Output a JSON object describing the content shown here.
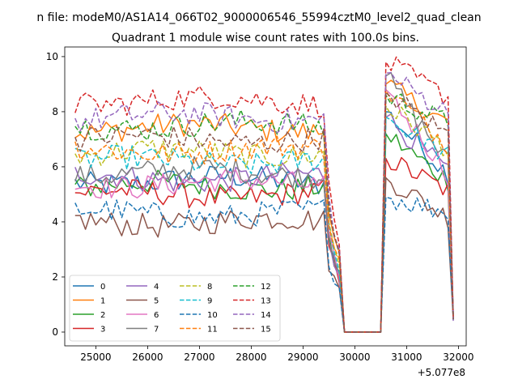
{
  "chart_data": {
    "type": "line",
    "suptitle": "n file: modeM0/AS1A14_066T02_9000006546_55994cztM0_level2_quad_clean",
    "title": "Quadrant 1 module wise count rates with 100.0s bins.",
    "xlabel": "",
    "ylabel": "",
    "x_offset_label": "+5.077e8",
    "xlim": [
      24400,
      32150
    ],
    "ylim": [
      -0.5,
      10.35
    ],
    "xticks": [
      25000,
      26000,
      27000,
      28000,
      29000,
      30000,
      31000,
      32000
    ],
    "yticks": [
      0,
      2,
      4,
      6,
      8,
      10
    ],
    "grid": false,
    "legend": {
      "location": "lower-left",
      "ncol": 4
    },
    "series": [
      {
        "name": "0",
        "color": "#1f77b4",
        "dash": "solid",
        "level": 5.5,
        "peak": 8.0
      },
      {
        "name": "1",
        "color": "#ff7f0e",
        "dash": "solid",
        "level": 7.4,
        "peak": 9.0
      },
      {
        "name": "2",
        "color": "#2ca02c",
        "dash": "solid",
        "level": 5.3,
        "peak": 7.2
      },
      {
        "name": "3",
        "color": "#d62728",
        "dash": "solid",
        "level": 5.0,
        "peak": 6.3
      },
      {
        "name": "4",
        "color": "#9467bd",
        "dash": "solid",
        "level": 5.6,
        "peak": 7.8
      },
      {
        "name": "5",
        "color": "#8c564b",
        "dash": "solid",
        "level": 4.0,
        "peak": 5.6
      },
      {
        "name": "6",
        "color": "#e377c2",
        "dash": "solid",
        "level": 5.4,
        "peak": 8.8
      },
      {
        "name": "7",
        "color": "#7f7f7f",
        "dash": "solid",
        "level": 5.8,
        "peak": 9.3
      },
      {
        "name": "8",
        "color": "#bcbd22",
        "dash": "dashed",
        "level": 6.5,
        "peak": 8.2
      },
      {
        "name": "9",
        "color": "#17becf",
        "dash": "dashed",
        "level": 6.2,
        "peak": 7.8
      },
      {
        "name": "10",
        "color": "#1f77b4",
        "dash": "dashed",
        "level": 4.3,
        "peak": 4.9
      },
      {
        "name": "11",
        "color": "#ff7f0e",
        "dash": "dashed",
        "level": 6.6,
        "peak": 8.8
      },
      {
        "name": "12",
        "color": "#2ca02c",
        "dash": "dashed",
        "level": 7.5,
        "peak": 8.6
      },
      {
        "name": "13",
        "color": "#d62728",
        "dash": "dashed",
        "level": 8.4,
        "peak": 9.8
      },
      {
        "name": "14",
        "color": "#9467bd",
        "dash": "dashed",
        "level": 7.8,
        "peak": 9.4
      },
      {
        "name": "15",
        "color": "#8c564b",
        "dash": "dashed",
        "level": 7.0,
        "peak": 8.7
      }
    ],
    "segments": {
      "start": 24600,
      "step": 100,
      "active_end": 29400,
      "drop_points": [
        29500,
        29600,
        29700
      ],
      "zero_start": 29800,
      "zero_end": 30500,
      "rise_start": 30600,
      "second_end": 31800,
      "final_points": [
        31900
      ]
    }
  }
}
